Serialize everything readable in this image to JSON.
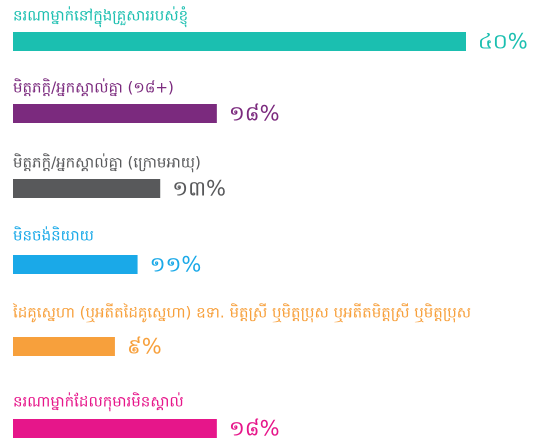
{
  "chart_data": {
    "type": "bar",
    "orientation": "horizontal",
    "categories": [
      "នរណាម្នាក់នៅក្នុងគ្រួសាររបស់ខ្ញុំ",
      "មិត្តភក្តិ/អ្នកស្គាល់គ្នា (១៨+)",
      "មិត្តភក្តិ/អ្នកស្គាល់គ្នា (ក្រោមអាយុ)",
      "មិនចង់និយាយ",
      "ដៃគូស្នេហា (ឬអតីតដៃគូស្នេហា) ឧទា. មិត្តស្រី ឬមិត្តប្រុស ឬអតីតមិត្តស្រី ឬមិត្តប្រុស",
      "នរណាម្នាក់ដែលកុមារមិនស្គាល់"
    ],
    "values": [
      40,
      18,
      13,
      11,
      9,
      18
    ],
    "value_labels": [
      "៤០%",
      "១៨%",
      "១៣%",
      "១១%",
      "៩%",
      "១៨%"
    ],
    "colors": [
      "#1bbfb0",
      "#7b2a7e",
      "#58595b",
      "#1aa9e8",
      "#f7a03c",
      "#e6168a"
    ]
  }
}
